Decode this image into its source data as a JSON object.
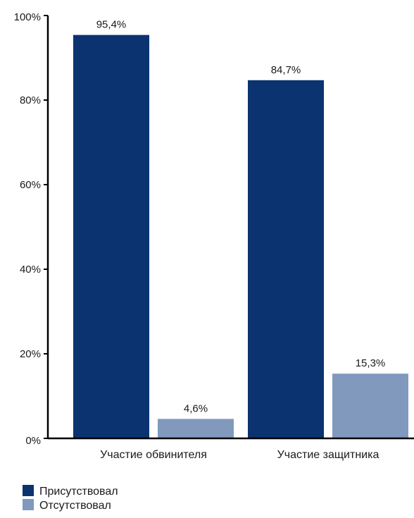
{
  "chart_data": {
    "type": "bar",
    "categories": [
      "Участие обвинителя",
      "Участие защитника"
    ],
    "series": [
      {
        "name": "Присутствовал",
        "color": "#0a3370",
        "values": [
          95.4,
          84.7
        ],
        "labels": [
          "95,4%",
          "84,7%"
        ]
      },
      {
        "name": "Отсутствовал",
        "color": "#8099bd",
        "values": [
          4.6,
          15.3
        ],
        "labels": [
          "4,6%",
          "15,3%"
        ]
      }
    ],
    "yticks": [
      0,
      20,
      40,
      60,
      80,
      100
    ],
    "ytick_labels": [
      "0%",
      "20%",
      "40%",
      "60%",
      "80%",
      "100%"
    ],
    "ylim": [
      0,
      100
    ],
    "grid": false,
    "legend_position": "bottom-left",
    "axis_color": "#000000"
  }
}
